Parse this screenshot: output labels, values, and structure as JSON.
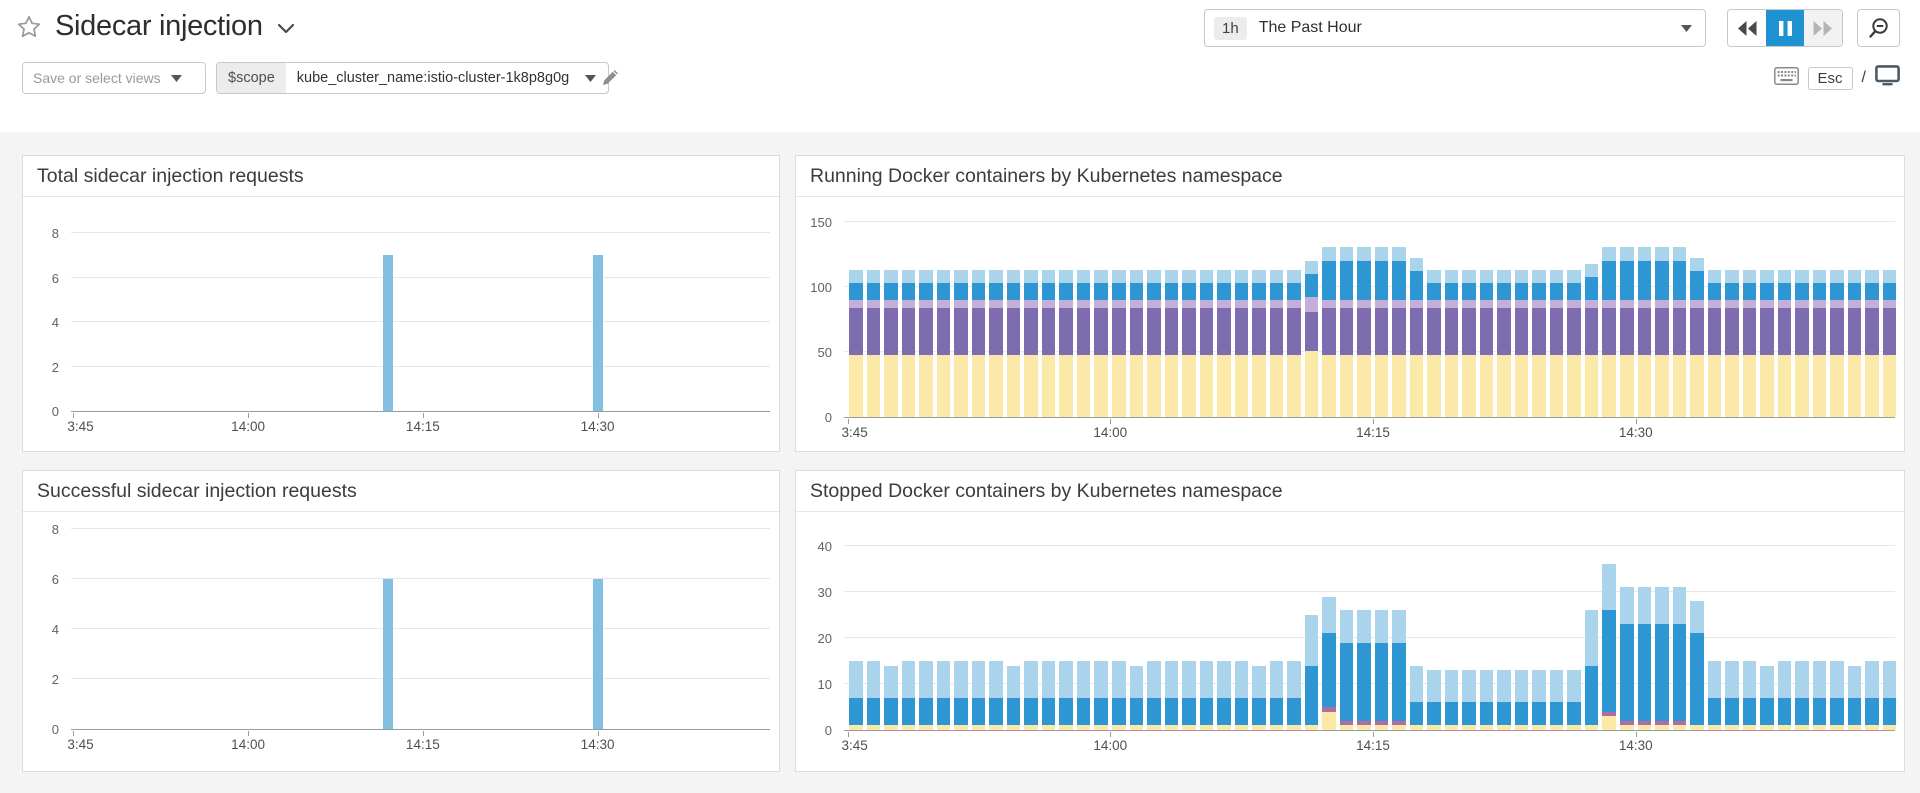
{
  "header": {
    "title": "Sidecar injection",
    "time_range": {
      "badge": "1h",
      "label": "The Past Hour"
    },
    "playback": {
      "state": "paused",
      "pause_active_color": "#1f93d1"
    },
    "icons": [
      "star-outline",
      "chevron-down",
      "rewind",
      "pause",
      "fast-forward",
      "zoom-out-magnifier"
    ]
  },
  "toolbar": {
    "views_placeholder": "Save or select views",
    "scope_label": "$scope",
    "scope_value": "kube_cluster_name:istio-cluster-1k8p8g0g",
    "esc_label": "Esc",
    "slash_label": "/",
    "icons": [
      "pencil",
      "keyboard",
      "monitor"
    ]
  },
  "colors": {
    "canvas_bg": "#f4f4f4",
    "card_border": "#dcdcdc",
    "accent_blue": "#1f93d1"
  },
  "charts": [
    {
      "id": "total-sidecar-injection-requests",
      "chart_data": {
        "type": "bar",
        "title": "Total sidecar injection requests",
        "bar_color": "#82bfe2",
        "ylim": [
          0,
          8
        ],
        "yticks": [
          0,
          2,
          4,
          6,
          8
        ],
        "x_domain": [
          "13:44:48",
          "14:44:48"
        ],
        "xticks": [
          {
            "label": "3:45",
            "time": "13:45"
          },
          {
            "label": "14:00",
            "time": "14:00"
          },
          {
            "label": "14:15",
            "time": "14:15"
          },
          {
            "label": "14:30",
            "time": "14:30"
          }
        ],
        "bars": [
          {
            "time": "14:12",
            "value": 7
          },
          {
            "time": "14:30",
            "value": 7
          }
        ],
        "grid": true,
        "legend": "none"
      }
    },
    {
      "id": "running-docker-containers-by-kubernetes-namespace",
      "chart_data": {
        "type": "bar",
        "stacked": true,
        "title": "Running Docker containers by Kubernetes namespace",
        "ylim": [
          0,
          150
        ],
        "yticks": [
          0,
          50,
          100,
          150
        ],
        "x_domain": [
          "13:44:48",
          "14:44:48"
        ],
        "x_start": "13:45",
        "x_step_minutes": 1,
        "bar_count": 60,
        "xticks": [
          {
            "label": "3:45",
            "time": "13:45"
          },
          {
            "label": "14:00",
            "time": "14:00"
          },
          {
            "label": "14:15",
            "time": "14:15"
          },
          {
            "label": "14:30",
            "time": "14:30"
          }
        ],
        "grid": true,
        "legend": "none",
        "series": [
          {
            "name": "namespace-yellow",
            "color": "#fbe9a8",
            "values": [
              48,
              48,
              48,
              48,
              48,
              48,
              48,
              48,
              48,
              48,
              48,
              48,
              48,
              48,
              48,
              48,
              48,
              48,
              48,
              48,
              48,
              48,
              48,
              48,
              48,
              48,
              51,
              48,
              48,
              48,
              48,
              48,
              48,
              48,
              48,
              48,
              48,
              48,
              48,
              48,
              48,
              48,
              48,
              48,
              48,
              48,
              48,
              48,
              48,
              48,
              48,
              48,
              48,
              48,
              48,
              48,
              48,
              48,
              48,
              48
            ]
          },
          {
            "name": "namespace-purple",
            "color": "#7e6cb0",
            "values": [
              36,
              36,
              36,
              36,
              36,
              36,
              36,
              36,
              36,
              36,
              36,
              36,
              36,
              36,
              36,
              36,
              36,
              36,
              36,
              36,
              36,
              36,
              36,
              36,
              36,
              36,
              30,
              36,
              36,
              36,
              36,
              36,
              36,
              36,
              36,
              36,
              36,
              36,
              36,
              36,
              36,
              36,
              36,
              36,
              36,
              36,
              36,
              36,
              36,
              36,
              36,
              36,
              36,
              36,
              36,
              36,
              36,
              36,
              36,
              36
            ]
          },
          {
            "name": "namespace-lavender",
            "color": "#c4aeda",
            "values": [
              6,
              6,
              6,
              6,
              6,
              6,
              6,
              6,
              6,
              6,
              6,
              6,
              6,
              6,
              6,
              6,
              6,
              6,
              6,
              6,
              6,
              6,
              6,
              6,
              6,
              6,
              11,
              6,
              6,
              6,
              6,
              6,
              6,
              6,
              6,
              6,
              6,
              6,
              6,
              6,
              6,
              6,
              6,
              6,
              6,
              6,
              6,
              6,
              6,
              6,
              6,
              6,
              6,
              6,
              6,
              6,
              6,
              6,
              6,
              6
            ]
          },
          {
            "name": "namespace-blue",
            "color": "#2e96d3",
            "values": [
              13,
              13,
              13,
              13,
              13,
              13,
              13,
              13,
              13,
              13,
              13,
              13,
              13,
              13,
              13,
              13,
              13,
              13,
              13,
              13,
              13,
              13,
              13,
              13,
              13,
              13,
              18,
              30,
              30,
              30,
              30,
              30,
              22,
              13,
              13,
              13,
              13,
              13,
              13,
              13,
              13,
              13,
              18,
              30,
              30,
              30,
              30,
              30,
              22,
              13,
              13,
              13,
              13,
              13,
              13,
              13,
              13,
              13,
              13,
              13
            ]
          },
          {
            "name": "namespace-light-blue",
            "color": "#a9d4ec",
            "values": [
              10,
              10,
              10,
              10,
              10,
              10,
              10,
              10,
              10,
              10,
              10,
              10,
              10,
              10,
              10,
              10,
              10,
              10,
              10,
              10,
              10,
              10,
              10,
              10,
              10,
              10,
              10,
              11,
              11,
              11,
              11,
              11,
              10,
              10,
              10,
              10,
              10,
              10,
              10,
              10,
              10,
              10,
              10,
              11,
              11,
              11,
              11,
              11,
              10,
              10,
              10,
              10,
              10,
              10,
              10,
              10,
              10,
              10,
              10,
              10
            ]
          }
        ]
      }
    },
    {
      "id": "successful-sidecar-injection-requests",
      "chart_data": {
        "type": "bar",
        "title": "Successful sidecar injection requests",
        "bar_color": "#82bfe2",
        "ylim": [
          0,
          8
        ],
        "yticks": [
          0,
          2,
          4,
          6,
          8
        ],
        "x_domain": [
          "13:44:48",
          "14:44:48"
        ],
        "xticks": [
          {
            "label": "3:45",
            "time": "13:45"
          },
          {
            "label": "14:00",
            "time": "14:00"
          },
          {
            "label": "14:15",
            "time": "14:15"
          },
          {
            "label": "14:30",
            "time": "14:30"
          }
        ],
        "bars": [
          {
            "time": "14:12",
            "value": 6
          },
          {
            "time": "14:30",
            "value": 6
          }
        ],
        "grid": true,
        "legend": "none"
      }
    },
    {
      "id": "stopped-docker-containers-by-kubernetes-namespace",
      "chart_data": {
        "type": "bar",
        "stacked": true,
        "title": "Stopped Docker containers by Kubernetes namespace",
        "ylim": [
          0,
          40
        ],
        "yticks": [
          0,
          10,
          20,
          30,
          40
        ],
        "x_domain": [
          "13:44:48",
          "14:44:48"
        ],
        "x_start": "13:45",
        "x_step_minutes": 1,
        "bar_count": 60,
        "xticks": [
          {
            "label": "3:45",
            "time": "13:45"
          },
          {
            "label": "14:00",
            "time": "14:00"
          },
          {
            "label": "14:15",
            "time": "14:15"
          },
          {
            "label": "14:30",
            "time": "14:30"
          }
        ],
        "grid": true,
        "legend": "none",
        "series": [
          {
            "name": "namespace-yellow",
            "color": "#fbe9a8",
            "values": [
              1,
              1,
              1,
              1,
              1,
              1,
              1,
              1,
              1,
              1,
              1,
              1,
              1,
              1,
              1,
              1,
              1,
              1,
              1,
              1,
              1,
              1,
              1,
              1,
              1,
              1,
              1,
              4,
              1,
              1,
              1,
              1,
              1,
              1,
              1,
              1,
              1,
              1,
              1,
              1,
              1,
              1,
              1,
              3,
              1,
              1,
              1,
              1,
              1,
              1,
              1,
              1,
              1,
              1,
              1,
              1,
              1,
              1,
              1,
              1
            ]
          },
          {
            "name": "namespace-magenta",
            "color": "#b06ca3",
            "values": [
              0,
              0,
              0,
              0,
              0,
              0,
              0,
              0,
              0,
              0,
              0,
              0,
              0,
              0,
              0,
              0,
              0,
              0,
              0,
              0,
              0,
              0,
              0,
              0,
              0,
              0,
              0,
              1,
              1,
              1,
              1,
              1,
              0,
              0,
              0,
              0,
              0,
              0,
              0,
              0,
              0,
              0,
              0,
              1,
              1,
              1,
              1,
              1,
              0,
              0,
              0,
              0,
              0,
              0,
              0,
              0,
              0,
              0,
              0,
              0
            ]
          },
          {
            "name": "namespace-blue",
            "color": "#2e96d3",
            "values": [
              6,
              6,
              6,
              6,
              6,
              6,
              6,
              6,
              6,
              6,
              6,
              6,
              6,
              6,
              6,
              6,
              6,
              6,
              6,
              6,
              6,
              6,
              6,
              6,
              6,
              6,
              13,
              16,
              17,
              17,
              17,
              17,
              5,
              5,
              5,
              5,
              5,
              5,
              5,
              5,
              5,
              5,
              13,
              22,
              21,
              21,
              21,
              21,
              20,
              6,
              6,
              6,
              6,
              6,
              6,
              6,
              6,
              6,
              6,
              6
            ]
          },
          {
            "name": "namespace-light-blue",
            "color": "#a9d4ec",
            "values": [
              8,
              8,
              7,
              8,
              8,
              8,
              8,
              8,
              8,
              7,
              8,
              8,
              8,
              8,
              8,
              8,
              7,
              8,
              8,
              8,
              8,
              8,
              8,
              7,
              8,
              8,
              11,
              8,
              7,
              7,
              7,
              7,
              8,
              7,
              7,
              7,
              7,
              7,
              7,
              7,
              7,
              7,
              12,
              10,
              8,
              8,
              8,
              8,
              7,
              8,
              8,
              8,
              7,
              8,
              8,
              8,
              8,
              7,
              8,
              8
            ]
          }
        ]
      }
    }
  ]
}
